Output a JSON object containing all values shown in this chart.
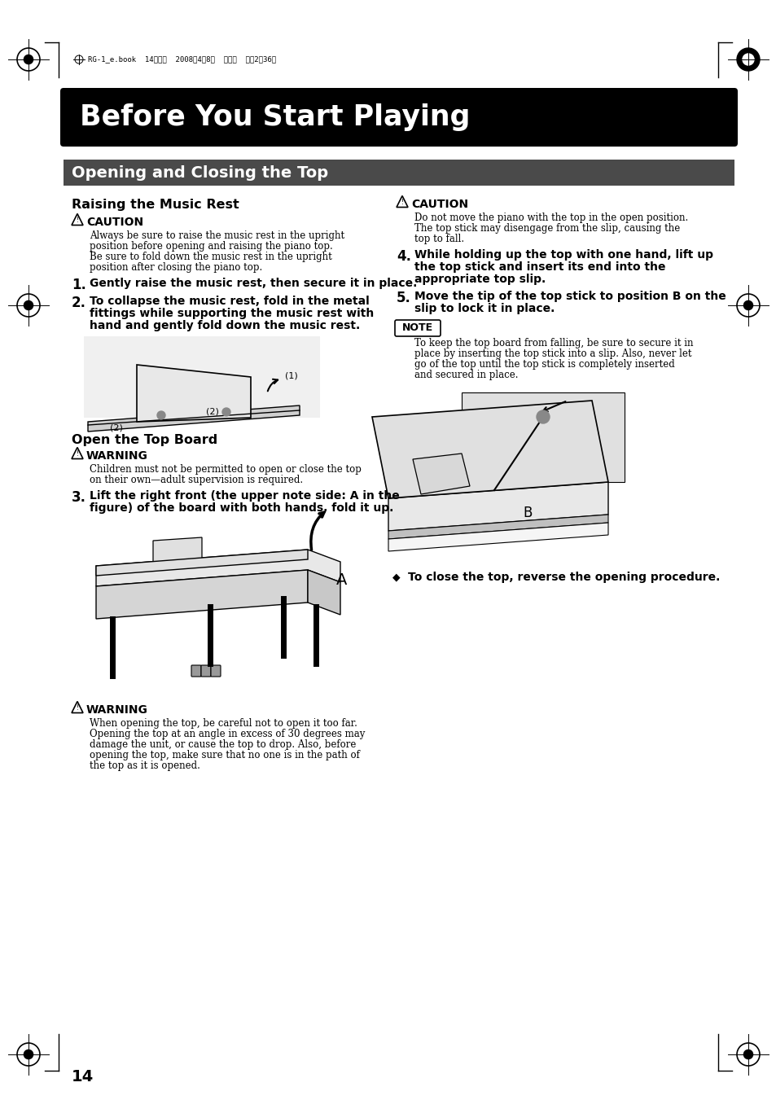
{
  "page_bg": "#ffffff",
  "title_bg": "#000000",
  "title_text": "Before You Start Playing",
  "title_color": "#ffffff",
  "section_bg": "#4a4a4a",
  "section_text": "Opening and Closing the Top",
  "section_color": "#ffffff",
  "header_meta": "RG-1_e.book  14ページ  2008年4月8日  火曜日  午後2時36分",
  "subsection1": "Raising the Music Rest",
  "caution_label": "CAUTION",
  "caution_text_lines": [
    "Always be sure to raise the music rest in the upright",
    "position before opening and raising the piano top.",
    "Be sure to fold down the music rest in the upright",
    "position after closing the piano top."
  ],
  "step1": "Gently raise the music rest, then secure it in place.",
  "step2_lines": [
    "To collapse the music rest, fold in the metal",
    "fittings while supporting the music rest with",
    "hand and gently fold down the music rest."
  ],
  "subsection2": "Open the Top Board",
  "warning1_label": "WARNING",
  "warning1_lines": [
    "Children must not be permitted to open or close the top",
    "on their own—adult supervision is required."
  ],
  "step3_lines": [
    "Lift the right front (the upper note side: A in the",
    "figure) of the board with both hands, fold it up."
  ],
  "warning2_label": "WARNING",
  "warning2_lines": [
    "When opening the top, be careful not to open it too far.",
    "Opening the top at an angle in excess of 30 degrees may",
    "damage the unit, or cause the top to drop. Also, before",
    "opening the top, make sure that no one is in the path of",
    "the top as it is opened."
  ],
  "right_caution_label": "CAUTION",
  "right_caution_lines": [
    "Do not move the piano with the top in the open position.",
    "The top stick may disengage from the slip, causing the",
    "top to fall."
  ],
  "step4_lines": [
    "While holding up the top with one hand, lift up",
    "the top stick and insert its end into the",
    "appropriate top slip."
  ],
  "step5_lines": [
    "Move the tip of the top stick to position B on the",
    "slip to lock it in place."
  ],
  "note_label": "NOTE",
  "note_lines": [
    "To keep the top board from falling, be sure to secure it in",
    "place by inserting the top stick into a slip. Also, never let",
    "go of the top until the top stick is completely inserted",
    "and secured in place."
  ],
  "close_text": "To close the top, reverse the opening procedure.",
  "page_number": "14"
}
